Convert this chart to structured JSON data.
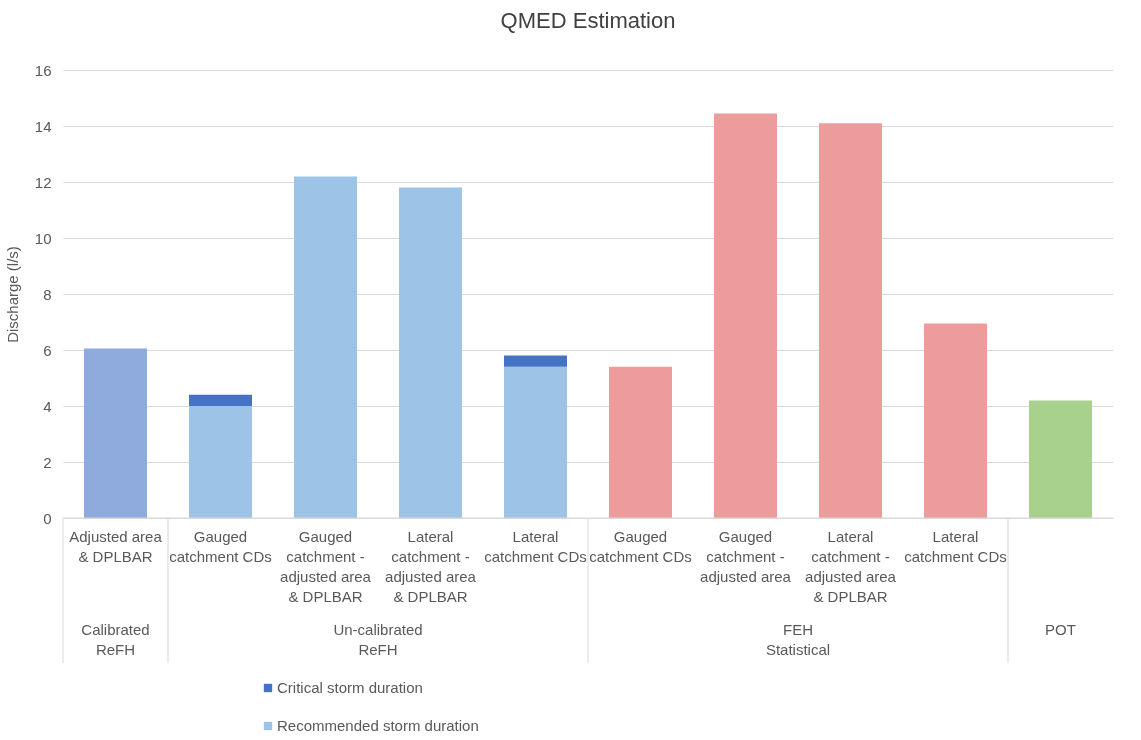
{
  "chart_data": {
    "type": "bar",
    "title": "QMED Estimation",
    "ylabel": "Discharge (l/s)",
    "categories": [
      "Adjusted area & DPLBAR",
      "Gauged catchment CDs",
      "Gauged catchment - adjusted area & DPLBAR",
      "Lateral catchment - adjusted area & DPLBAR",
      "Lateral catchment CDs",
      "Gauged catchment CDs",
      "Gauged catchment - adjusted area",
      "Lateral catchment - adjusted area & DPLBAR",
      "Lateral catchment CDs",
      null
    ],
    "series": [
      {
        "name": "Recommended storm duration",
        "color": "#9dc3e6",
        "colors": [
          "#8faadc",
          "#9dc3e6",
          "#9dc3e6",
          "#9dc3e6",
          "#9dc3e6",
          "#ed9c9c",
          "#ed9c9c",
          "#ed9c9c",
          "#ed9c9c",
          "#a9d18e"
        ],
        "values": [
          6.05,
          4.0,
          12.2,
          11.8,
          5.4,
          5.4,
          14.45,
          14.1,
          6.95,
          4.2
        ]
      },
      {
        "name": "Critical storm duration",
        "color": "#4472c4",
        "values": [
          null,
          0.4,
          null,
          null,
          0.4,
          null,
          null,
          null,
          null,
          null
        ]
      }
    ],
    "stacked": true,
    "annotations": [
      "Calibrated ReFH",
      "Un-calibrated ReFH",
      "FEH Statistical",
      "POT"
    ],
    "ylim": [
      0,
      16
    ],
    "yticks": [
      0,
      2,
      4,
      6,
      8,
      10,
      12,
      14,
      16
    ],
    "grid": "y",
    "legend": "bottom"
  }
}
